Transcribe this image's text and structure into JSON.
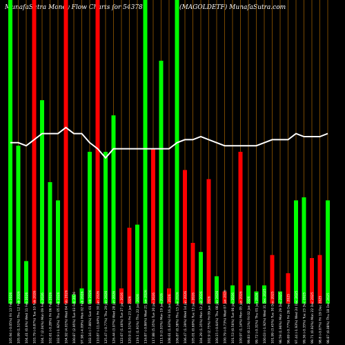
{
  "header": {
    "title_left": "MunafaSutra  Money Flow  Charts for 543781",
    "title_right": "(MAGOLDETF) MunafaSutra.com"
  },
  "colors": {
    "background": "#000000",
    "up": "#00ff00",
    "down": "#ff0000",
    "grid": "#c87800",
    "line": "#ffffff",
    "label": "#ffffff"
  },
  "chart_data": {
    "type": "bar",
    "title": "MunafaSutra  Money Flow  Charts for 543781",
    "subtitle": "(MAGOLDETF) MunafaSutra.com",
    "ylim": [
      0,
      100
    ],
    "x": [
      "105.94 (-0.05%) Fri 13 Feb 2026",
      "105.99 (1.51%) Thu 12 Feb 2026",
      "104.41 (0.6%) Wed 11 Feb 2026",
      "103.79 (-0.87%) Tue 10 Feb 2026",
      "104.7 (2.04%) Mon 09 Feb 2026",
      "102.61 (-0.28%) Fri 06 Feb 2026",
      "102.9 (-1.92%) Thu 05 Feb 2026",
      "104.92 (4.01%) Wed 04 Feb 2026",
      "100.87 (2.95%) Tue 03 Feb 2026",
      "97.98 (-4.09%) Mon 02 Feb 2026",
      "102.16 (-7.86%) Sun 01 Feb 2026",
      "110.87 (-11.64%) Fri 30 Jan 2026",
      "125.47 (-0.77%) Thu 29 Jan 2026",
      "126.44 (3.07%) Wed 28 Jan 2026",
      "122.67 (1.46%) Tue 27 Jan 2026",
      "120.9 (1.51%) Fri 23 Jan 2026",
      "119.1 (1.91%) Thu 22 Jan 2026",
      "116.87 (-0.86%) Wed 21 Jan 2026",
      "117.88 (5.35%) Tue 20 Jan 2026",
      "111.9 (3.03%) Mon 19 Jan 2026",
      "108.61 (1.63%) Fri 16 Jan 2026",
      "106.87 (0.38%) Thu 15 Jan 2026",
      "106.47 (1.39%) Wed 14 Jan 2026",
      "105.01 (0.69%) Tue 13 Jan 2026",
      "104.29 (1.35%) Mon 12 Jan 2026",
      "102.9 (2.75%) Fri 09 Jan 2026",
      "100.15 (-0.64%) Thu 08 Jan 2026",
      "100.79 (-0.73%) Wed 07 Jan 2026",
      "101.53 (0.56%) Tue 06 Jan 2026",
      "100.97 (1.14%) Mon 05 Jan 2026",
      "99.83 (0.11%) Fri 02 Jan 2026",
      "99.72 (-0.31%) Thu 01 Jan 2026",
      "100.03 (-1.92%) Wed 31 Dec 2025",
      "101.99 (3.45%) Tue 30 Dec 2025",
      "98.59 (1.96%) Mon 29 Dec 2025",
      "96.69 (-0.77%) Fri 26 Dec 2025",
      "97.44 (-1.93%) Wed 24 Dec 2025",
      "99.36 (-0.35%) Tue 23 Dec 2025",
      "99.71 (0.92%) Mon 22 Dec 2025",
      "98.8 (-0.07%) Fri 19 Dec 2025",
      "98.87 (0.08%) Thu 18 Dec 2025"
    ],
    "bar_values": [
      100,
      52,
      14,
      100,
      67,
      40,
      34,
      100,
      3,
      5,
      50,
      100,
      50,
      62,
      5,
      25,
      26,
      100,
      51,
      80,
      5,
      100,
      44,
      20,
      17,
      41,
      9,
      4,
      6,
      50,
      6,
      4,
      6,
      16,
      4,
      10,
      34,
      35,
      15,
      16,
      34
    ],
    "bar_directions": [
      "up",
      "up",
      "up",
      "down",
      "up",
      "up",
      "up",
      "down",
      "up",
      "up",
      "up",
      "down",
      "up",
      "up",
      "down",
      "down",
      "up",
      "up",
      "down",
      "up",
      "down",
      "up",
      "down",
      "down",
      "up",
      "down",
      "up",
      "down",
      "up",
      "down",
      "up",
      "red_skip",
      "up",
      "down",
      "up",
      "down",
      "up",
      "up",
      "down",
      "down",
      "up"
    ],
    "line_values": [
      53,
      53,
      52,
      54,
      56,
      56,
      56,
      58,
      56,
      56,
      53,
      51,
      48,
      51,
      51,
      51,
      51,
      51,
      51,
      51,
      51,
      53,
      54,
      54,
      55,
      54,
      53,
      52,
      52,
      52,
      52,
      52,
      53,
      54,
      54,
      54,
      56,
      55,
      55,
      55,
      56
    ]
  }
}
